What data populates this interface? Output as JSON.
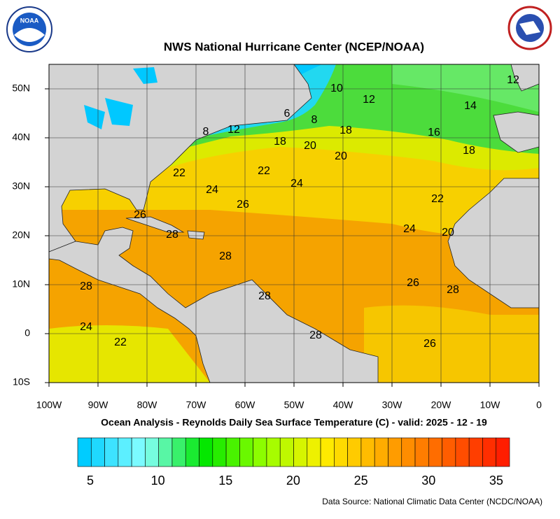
{
  "header": {
    "title": "NWS National Hurricane Center (NCEP/NOAA)",
    "logo_left": "NOAA"
  },
  "map": {
    "lon_labels": [
      "100W",
      "90W",
      "80W",
      "70W",
      "60W",
      "50W",
      "40W",
      "30W",
      "20W",
      "10W",
      "0"
    ],
    "lat_labels": [
      "50N",
      "40N",
      "30N",
      "20N",
      "10N",
      "0",
      "10S"
    ],
    "contour_labels": [
      6,
      8,
      8,
      12,
      18,
      16,
      14,
      12,
      10,
      12,
      18,
      20,
      20,
      18,
      22,
      22,
      24,
      24,
      26,
      22,
      24,
      20,
      26,
      28,
      28,
      28,
      26,
      28,
      28,
      24,
      22,
      28,
      26
    ]
  },
  "caption": "Ocean Analysis - Reynolds Daily Sea Surface Temperature (C) - valid: 2025 - 12 - 19",
  "colorbar": {
    "ticks": [
      5,
      10,
      15,
      20,
      25,
      30,
      35
    ]
  },
  "source": "Data Source: National Climatic Data Center (NCDC/NOAA)"
}
